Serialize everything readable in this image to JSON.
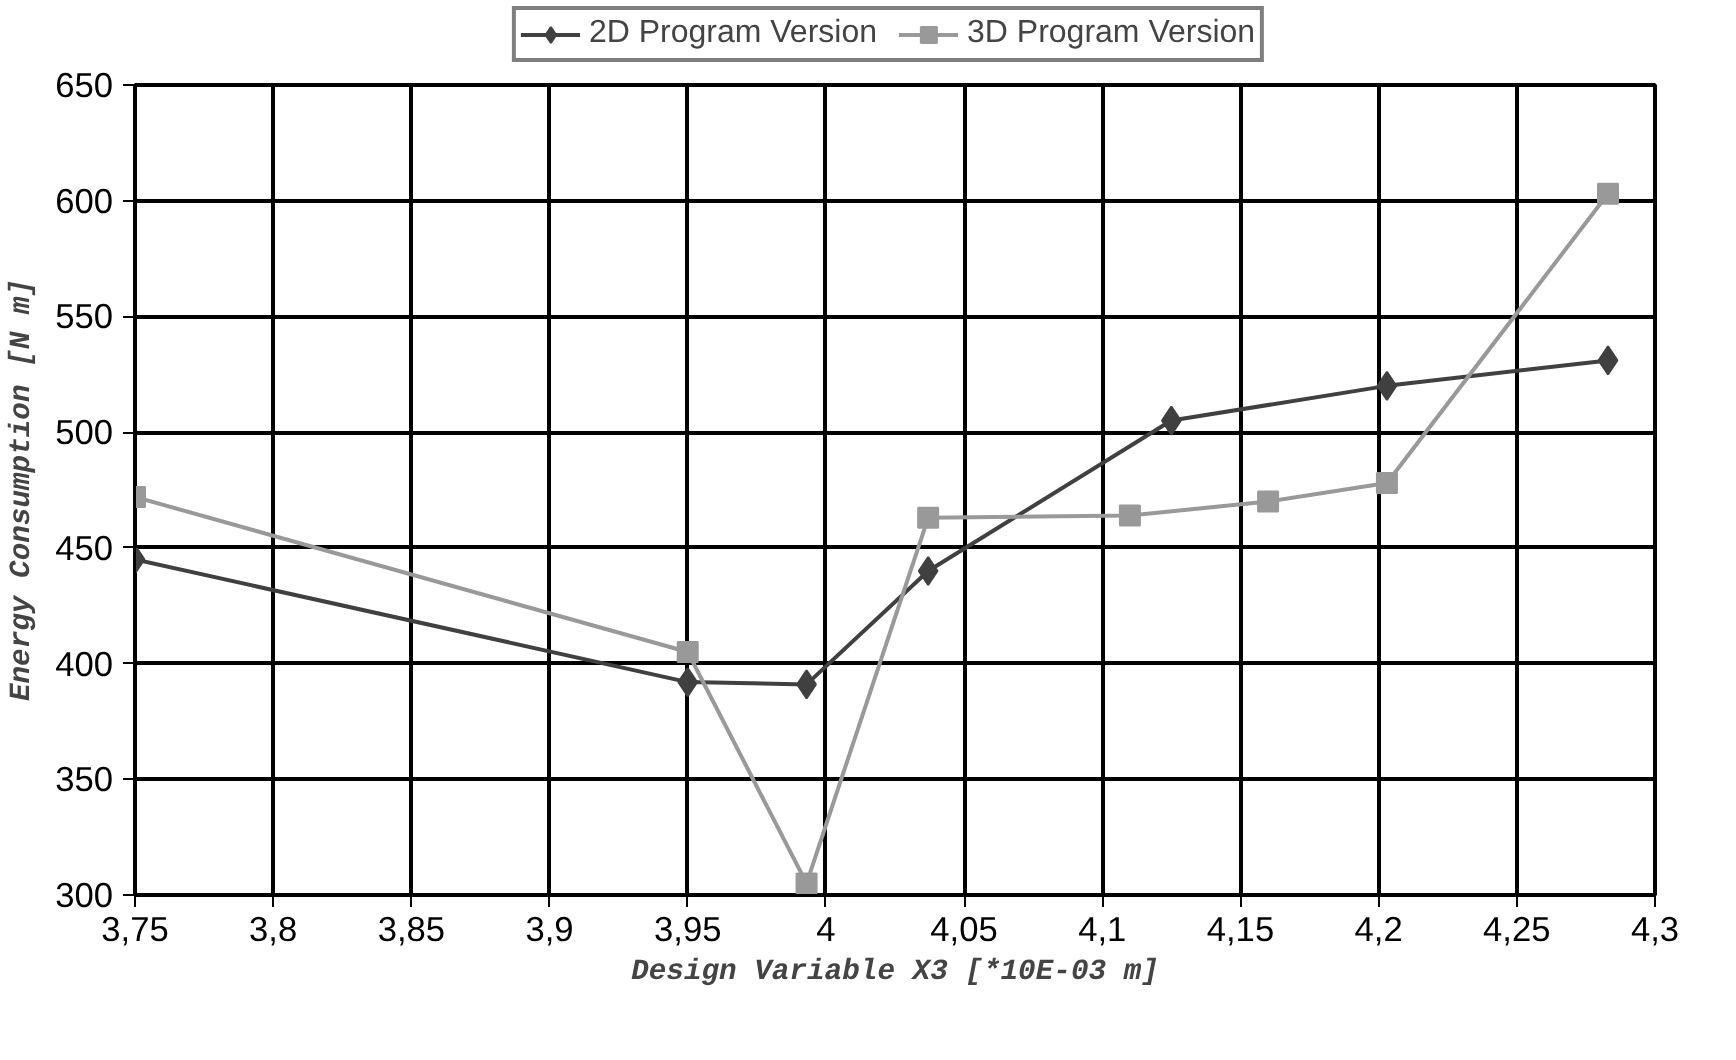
{
  "chart_data": {
    "type": "line",
    "xlabel": "Design Variable X3 [*10E-03 m]",
    "ylabel": "Energy Consumption [N m]",
    "xlim": [
      3.75,
      4.3
    ],
    "ylim": [
      300,
      650
    ],
    "xticks": [
      {
        "value": 3.75,
        "label": "3,75"
      },
      {
        "value": 3.8,
        "label": "3,8"
      },
      {
        "value": 3.85,
        "label": "3,85"
      },
      {
        "value": 3.9,
        "label": "3,9"
      },
      {
        "value": 3.95,
        "label": "3,95"
      },
      4,
      {
        "value": 4.05,
        "label": "4,05"
      },
      {
        "value": 4.1,
        "label": "4,1"
      },
      {
        "value": 4.15,
        "label": "4,15"
      },
      {
        "value": 4.2,
        "label": "4,2"
      },
      {
        "value": 4.25,
        "label": "4,25"
      },
      {
        "value": 4.3,
        "label": "4,3"
      }
    ],
    "yticks": [
      300,
      350,
      400,
      450,
      500,
      550,
      600,
      650
    ],
    "grid": true,
    "legend": "top",
    "line_style": "solid",
    "series": [
      {
        "name": "2D Program Version",
        "color": "#404040",
        "marker": "diamond",
        "x": [
          3.75,
          3.95,
          3.993,
          4.037,
          4.125,
          4.203,
          4.283
        ],
        "values": [
          445,
          392,
          391,
          440,
          505,
          520,
          531
        ]
      },
      {
        "name": "3D Program Version",
        "color": "#999999",
        "marker": "square",
        "x": [
          3.75,
          3.95,
          3.993,
          4.037,
          4.11,
          4.16,
          4.203,
          4.283
        ],
        "values": [
          472,
          405,
          305,
          463,
          464,
          470,
          478,
          603
        ]
      }
    ]
  }
}
